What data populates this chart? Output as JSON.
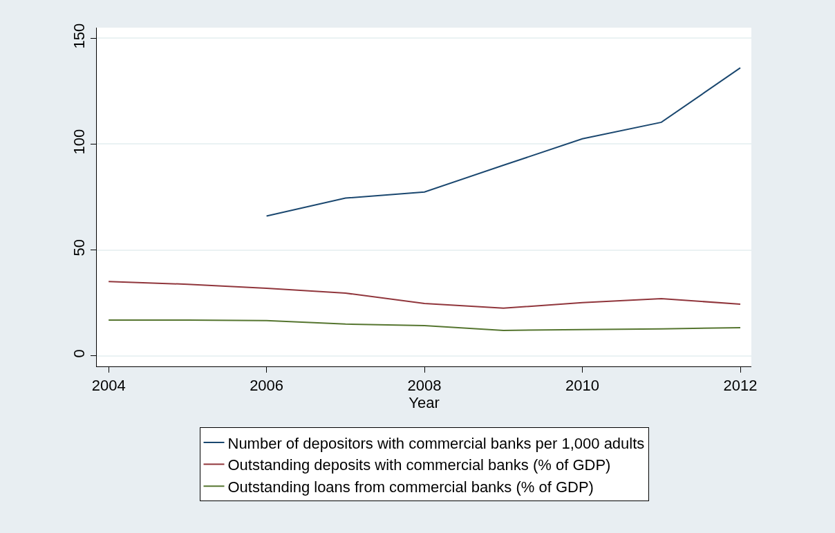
{
  "chart_data": {
    "type": "line",
    "xlabel": "Year",
    "x": [
      2004,
      2005,
      2006,
      2007,
      2008,
      2009,
      2010,
      2011,
      2012
    ],
    "series": [
      {
        "name": "Number of depositors with commercial banks per 1,000 adults",
        "color": "#1a476f",
        "values": [
          null,
          null,
          66.0,
          74.5,
          77.4,
          90.0,
          102.5,
          110.3,
          136.0
        ]
      },
      {
        "name": "Outstanding deposits with commercial banks (% of GDP)",
        "color": "#90353b",
        "values": [
          35.1,
          33.8,
          31.9,
          29.6,
          24.7,
          22.5,
          25.1,
          27.0,
          24.4
        ]
      },
      {
        "name": "Outstanding loans from commercial banks (% of GDP)",
        "color": "#55752f",
        "values": [
          16.9,
          16.9,
          16.6,
          15.0,
          14.3,
          12.0,
          12.4,
          12.7,
          13.3
        ]
      }
    ],
    "xlim": [
      2003.85,
      2012.14
    ],
    "xticks": [
      2004,
      2006,
      2008,
      2010,
      2012
    ],
    "ylim": [
      -5,
      155
    ],
    "yticks": [
      0,
      50,
      100,
      150
    ],
    "grid": "y",
    "legend": "bottom",
    "marker": "none",
    "line_style": "solid"
  }
}
